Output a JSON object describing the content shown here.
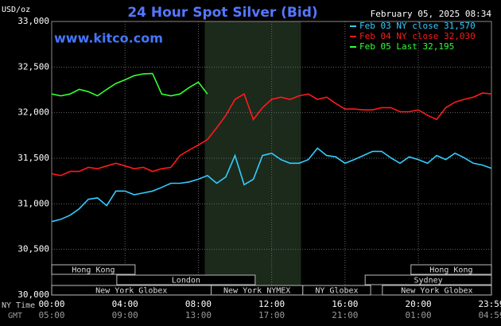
{
  "chart_data": {
    "type": "line",
    "title": "24 Hour Spot Silver (Bid)",
    "timestamp": "February 05, 2025 08:34",
    "y_unit": "USD/oz",
    "watermark": "www.kitco.com",
    "x_axis_label": "NY Time",
    "x2_axis_label": "GMT",
    "x": [
      0,
      0.5,
      1,
      1.5,
      2,
      2.5,
      3,
      3.5,
      4,
      4.5,
      5,
      5.5,
      6,
      6.5,
      7,
      7.5,
      8,
      8.5,
      9,
      9.5,
      10,
      10.5,
      11,
      11.5,
      12,
      12.5,
      13,
      13.5,
      14,
      14.5,
      15,
      15.5,
      16,
      16.5,
      17,
      17.5,
      18,
      18.5,
      19,
      19.5,
      20,
      20.5,
      21,
      21.5,
      22,
      22.5,
      23,
      23.5,
      23.99
    ],
    "series": [
      {
        "name": "Feb 03 NY close 31,570",
        "color": "#33ccff",
        "values": [
          30805,
          30830,
          30875,
          30945,
          31050,
          31065,
          30980,
          31140,
          31140,
          31100,
          31120,
          31140,
          31180,
          31225,
          31225,
          31240,
          31270,
          31310,
          31225,
          31295,
          31530,
          31210,
          31270,
          31530,
          31555,
          31485,
          31445,
          31445,
          31485,
          31610,
          31530,
          31515,
          31445,
          31485,
          31530,
          31575,
          31575,
          31505,
          31445,
          31515,
          31485,
          31445,
          31530,
          31485,
          31555,
          31505,
          31445,
          31425,
          31390
        ]
      },
      {
        "name": "Feb 04 NY close 32,030",
        "color": "#ff1a1a",
        "values": [
          31330,
          31310,
          31355,
          31355,
          31400,
          31385,
          31415,
          31445,
          31415,
          31385,
          31400,
          31355,
          31385,
          31400,
          31530,
          31590,
          31645,
          31705,
          31835,
          31970,
          32145,
          32205,
          31925,
          32055,
          32145,
          32170,
          32145,
          32185,
          32205,
          32145,
          32170,
          32100,
          32040,
          32040,
          32030,
          32030,
          32055,
          32055,
          32010,
          32010,
          32030,
          31970,
          31925,
          32055,
          32115,
          32145,
          32170,
          32215,
          32205
        ]
      },
      {
        "name": "Feb 05 Last 32,195",
        "color": "#33ff33",
        "values": [
          32205,
          32185,
          32205,
          32255,
          32230,
          32185,
          32255,
          32320,
          32360,
          32405,
          32425,
          32430,
          32205,
          32185,
          32205,
          32275,
          32335,
          32205,
          null,
          null,
          null,
          null,
          null,
          null,
          null,
          null,
          null,
          null,
          null,
          null,
          null,
          null,
          null,
          null,
          null,
          null,
          null,
          null,
          null,
          null,
          null,
          null,
          null,
          null,
          null,
          null,
          null,
          null,
          null
        ]
      }
    ],
    "xlim": [
      0,
      23.99
    ],
    "xticks": [
      {
        "value": 0,
        "label": "00:00"
      },
      {
        "value": 4,
        "label": "04:00"
      },
      {
        "value": 8,
        "label": "08:00"
      },
      {
        "value": 12,
        "label": "12:00"
      },
      {
        "value": 16,
        "label": "16:00"
      },
      {
        "value": 20,
        "label": "20:00"
      },
      {
        "value": 23.99,
        "label": "23:59"
      }
    ],
    "x2tick_labels": [
      "05:00",
      "09:00",
      "13:00",
      "17:00",
      "21:00",
      "01:00",
      "04:59"
    ],
    "ylim": [
      30000,
      33000
    ],
    "yticks": [
      {
        "value": 30000,
        "label": "30,000"
      },
      {
        "value": 30500,
        "label": "30,500"
      },
      {
        "value": 31000,
        "label": "31,000"
      },
      {
        "value": 31500,
        "label": "31,500"
      },
      {
        "value": 32000,
        "label": "32,000"
      },
      {
        "value": 32500,
        "label": "32,500"
      },
      {
        "value": 33000,
        "label": "33,000"
      }
    ],
    "grid": true,
    "shaded_range": [
      8.35,
      13.6
    ],
    "sessions": [
      {
        "label": "Hong Kong",
        "start": 0,
        "end": 4.55,
        "row": 0
      },
      {
        "label": "Hong Kong",
        "start": 19.6,
        "end": 23.99,
        "row": 0
      },
      {
        "label": "London",
        "start": 3.55,
        "end": 11.1,
        "row": 1
      },
      {
        "label": "Sydney",
        "start": 17.1,
        "end": 23.99,
        "row": 1
      },
      {
        "label": "New York Globex",
        "start": 0,
        "end": 8.7,
        "row": 2
      },
      {
        "label": "New York NYMEX",
        "start": 8.7,
        "end": 13.7,
        "row": 2
      },
      {
        "label": "NY Globex",
        "start": 13.7,
        "end": 17.4,
        "row": 2
      },
      {
        "label": "New York Globex",
        "start": 18.04,
        "end": 23.99,
        "row": 2
      }
    ]
  }
}
